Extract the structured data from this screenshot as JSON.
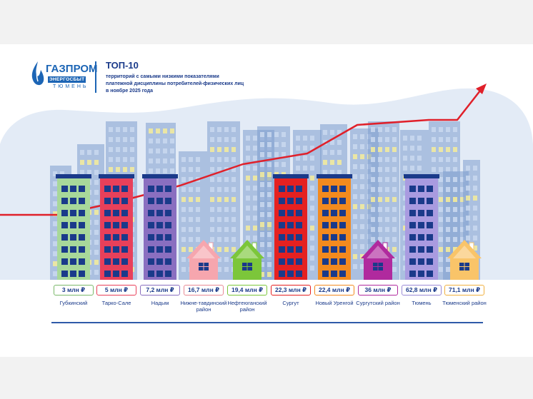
{
  "logo": {
    "brand": "ГАЗПРОМ",
    "sub": "ЭНЕРГОСБЫТ",
    "city": "ТЮМЕНЬ"
  },
  "title": "ТОП-10",
  "subtitle_lines": [
    "территорий с самыми низкими показателями",
    "платежной дисциплины потребителей-физических лиц",
    "в ноябре 2025 года"
  ],
  "items": [
    {
      "value": "3 млн ₽",
      "name": "Губкинский",
      "color": "#a8d89a",
      "type": "building",
      "border": "#7ab86a"
    },
    {
      "value": "5 млн ₽",
      "name": "Тарко-Сале",
      "color": "#e8405a",
      "type": "building",
      "border": "#e8405a"
    },
    {
      "value": "7,2 млн ₽",
      "name": "Надым",
      "color": "#8a6fc0",
      "type": "building",
      "border": "#8a6fc0"
    },
    {
      "value": "16,7 млн ₽",
      "name": "Нижне-тавдинский район",
      "color": "#f6a6ae",
      "type": "house",
      "border": "#e88a94"
    },
    {
      "value": "19,4 млн ₽",
      "name": "Нефтеюганский район",
      "color": "#7cc63a",
      "type": "house",
      "border": "#7cc63a"
    },
    {
      "value": "22,3 млн ₽",
      "name": "Сургут",
      "color": "#e52121",
      "type": "building",
      "border": "#e52121"
    },
    {
      "value": "22,4 млн ₽",
      "name": "Новый Уренгой",
      "color": "#f38a1e",
      "type": "building",
      "border": "#f38a1e"
    },
    {
      "value": "36 млн ₽",
      "name": "Сургутский район",
      "color": "#b02a9e",
      "type": "house",
      "border": "#b02a9e"
    },
    {
      "value": "62,8 млн ₽",
      "name": "Тюмень",
      "color": "#a99be0",
      "type": "building",
      "border": "#9b8bd6"
    },
    {
      "value": "71,1 млн ₽",
      "name": "Тюменский район",
      "color": "#f9c469",
      "type": "house",
      "border": "#f0b040"
    }
  ],
  "colors": {
    "trend": "#e0202a",
    "brand": "#1c65b5",
    "sky": "#e3ebf6",
    "city": "#7e9ccd"
  }
}
